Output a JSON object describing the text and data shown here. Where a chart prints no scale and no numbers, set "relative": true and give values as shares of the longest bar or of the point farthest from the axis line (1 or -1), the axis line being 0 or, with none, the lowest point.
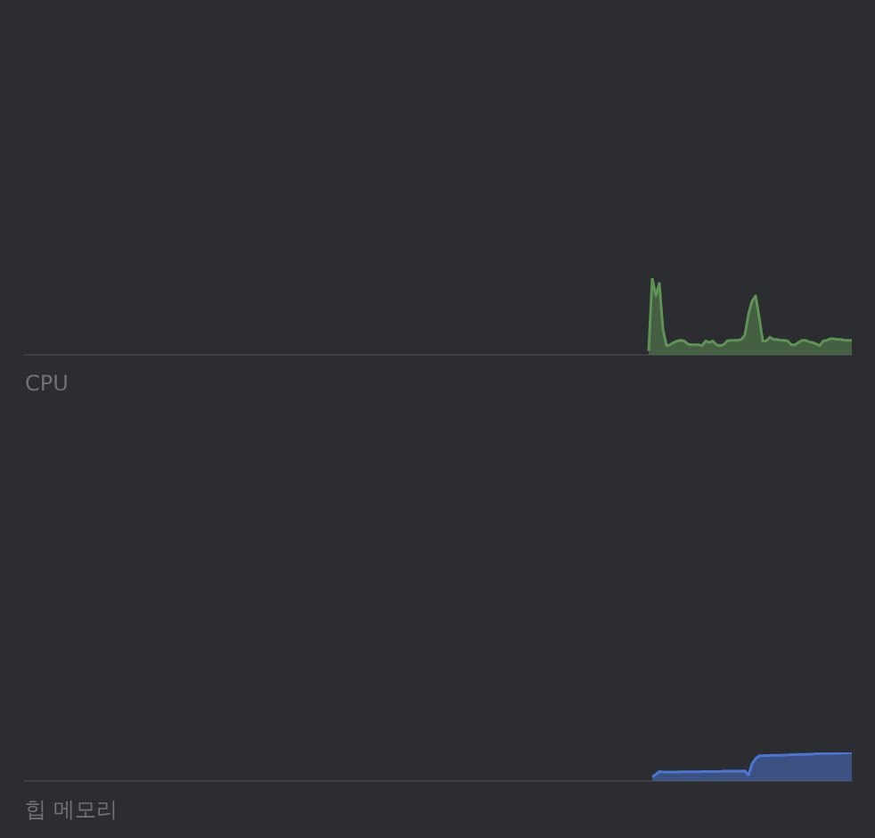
{
  "chart_data": [
    {
      "type": "area",
      "title": "CPU",
      "relative": true,
      "color": "#5f9255",
      "categories": [
        null,
        null,
        null,
        null,
        null,
        null,
        null,
        null,
        null,
        null,
        null,
        null,
        null,
        null,
        null,
        null,
        null,
        null,
        null,
        null,
        null,
        null,
        null,
        null,
        null,
        null,
        null,
        null,
        null,
        null,
        null,
        null,
        null,
        null,
        null,
        null,
        null,
        null,
        null,
        null,
        null,
        null,
        null,
        null,
        null,
        null,
        null,
        null,
        null,
        null,
        null,
        null,
        null,
        null,
        null,
        null,
        null,
        null,
        null,
        null,
        null,
        null,
        null,
        null,
        null,
        null,
        null,
        null,
        null,
        null,
        null,
        null,
        null,
        null,
        null,
        null,
        null,
        null,
        null,
        null,
        null,
        null,
        null,
        null,
        null,
        null,
        null,
        null,
        null,
        null,
        null,
        null,
        null,
        null,
        null,
        null,
        null,
        null,
        null,
        null,
        null,
        null,
        null,
        null,
        null,
        null,
        null,
        null,
        null,
        null,
        null,
        null,
        null,
        null,
        null,
        null,
        null,
        null,
        null,
        null,
        null,
        null,
        null,
        null,
        null,
        null,
        null,
        null,
        null,
        null,
        null,
        null,
        null,
        null,
        null,
        null,
        null,
        null,
        null,
        null,
        null,
        null,
        null,
        null,
        null,
        null,
        null,
        null,
        null,
        null,
        null,
        null,
        null,
        null,
        null,
        null,
        null,
        null,
        null,
        null,
        null,
        null,
        null,
        null,
        null,
        null,
        null,
        null,
        null,
        null,
        null,
        null,
        null,
        null,
        null,
        null,
        null,
        null,
        null,
        null,
        null,
        null,
        null,
        null,
        null,
        null,
        null,
        null,
        null,
        null,
        null,
        null,
        null,
        null,
        null,
        null,
        null,
        null,
        null,
        null,
        null,
        null,
        null,
        null,
        null,
        null,
        null,
        null,
        null,
        null,
        null,
        null,
        null,
        null,
        null,
        null,
        null,
        null,
        null,
        null,
        null,
        null,
        null,
        null,
        null,
        null,
        null,
        null,
        null,
        null,
        null,
        null,
        null
      ],
      "values": [
        null,
        null,
        null,
        null,
        null,
        null,
        null,
        null,
        null,
        null,
        null,
        null,
        null,
        null,
        null,
        null,
        null,
        null,
        null,
        null,
        null,
        null,
        null,
        null,
        null,
        null,
        null,
        null,
        null,
        null,
        null,
        null,
        null,
        null,
        null,
        null,
        null,
        null,
        null,
        null,
        null,
        null,
        null,
        null,
        null,
        null,
        null,
        null,
        null,
        null,
        null,
        null,
        null,
        null,
        null,
        null,
        null,
        null,
        null,
        null,
        null,
        null,
        null,
        null,
        null,
        null,
        null,
        null,
        null,
        null,
        null,
        null,
        null,
        null,
        null,
        null,
        null,
        null,
        null,
        null,
        null,
        null,
        null,
        null,
        null,
        null,
        null,
        null,
        null,
        null,
        null,
        null,
        null,
        null,
        null,
        null,
        null,
        null,
        null,
        null,
        null,
        null,
        null,
        null,
        null,
        null,
        null,
        null,
        null,
        null,
        null,
        null,
        null,
        null,
        null,
        null,
        null,
        null,
        null,
        null,
        null,
        null,
        null,
        null,
        null,
        null,
        null,
        null,
        null,
        null,
        null,
        null,
        null,
        null,
        null,
        null,
        null,
        null,
        null,
        null,
        null,
        null,
        null,
        null,
        null,
        null,
        null,
        null,
        null,
        null,
        null,
        null,
        null,
        null,
        null,
        null,
        null,
        null,
        null,
        null,
        null,
        null,
        null,
        null,
        null,
        null,
        null,
        null,
        null,
        null,
        null,
        null,
        null,
        null,
        null,
        0.05,
        1,
        0.77,
        0.93,
        0.33,
        0.12,
        0.13,
        0.16,
        0.18,
        0.19,
        0.18,
        0.14,
        0.13,
        0.13,
        0.13,
        0.12,
        0.18,
        0.16,
        0.18,
        0.13,
        0.12,
        0.13,
        0.18,
        0.19,
        0.19,
        0.19,
        0.2,
        0.26,
        0.53,
        0.7,
        0.77,
        0.49,
        0.18,
        0.18,
        0.23,
        0.2,
        0.2,
        0.19,
        0.19,
        0.18,
        0.13,
        0.13,
        0.16,
        0.19,
        0.19,
        0.17,
        0.16,
        0.14,
        0.12,
        0.18,
        0.19,
        0.21,
        0.21,
        0.2,
        0.2,
        0.19,
        0.19,
        0.19
      ]
    },
    {
      "type": "area",
      "title": "힙 메모리",
      "relative": true,
      "color": "#4a76d2",
      "categories": [
        null,
        null,
        null,
        null,
        null,
        null,
        null,
        null,
        null,
        null,
        null,
        null,
        null,
        null,
        null,
        null,
        null,
        null,
        null,
        null,
        null,
        null,
        null,
        null,
        null,
        null,
        null,
        null,
        null,
        null,
        null,
        null,
        null,
        null,
        null,
        null,
        null,
        null,
        null,
        null,
        null,
        null,
        null,
        null,
        null,
        null,
        null,
        null,
        null,
        null,
        null,
        null,
        null,
        null,
        null,
        null,
        null,
        null,
        null,
        null,
        null,
        null,
        null,
        null,
        null,
        null,
        null,
        null,
        null,
        null,
        null,
        null,
        null,
        null,
        null,
        null,
        null,
        null,
        null,
        null,
        null,
        null,
        null,
        null,
        null,
        null,
        null,
        null,
        null,
        null,
        null,
        null,
        null,
        null,
        null,
        null,
        null,
        null,
        null,
        null,
        null,
        null,
        null,
        null,
        null,
        null,
        null,
        null,
        null,
        null,
        null,
        null,
        null,
        null,
        null,
        null,
        null,
        null,
        null,
        null,
        null,
        null,
        null,
        null,
        null,
        null,
        null,
        null,
        null,
        null,
        null,
        null,
        null,
        null,
        null,
        null,
        null,
        null,
        null,
        null,
        null,
        null,
        null,
        null,
        null,
        null,
        null,
        null,
        null,
        null,
        null,
        null,
        null,
        null,
        null,
        null,
        null,
        null,
        null,
        null,
        null,
        null,
        null,
        null,
        null,
        null,
        null,
        null,
        null,
        null,
        null,
        null,
        null,
        null,
        null,
        null,
        null,
        null,
        null,
        null,
        null,
        null,
        null,
        null,
        null,
        null,
        null,
        null,
        null,
        null,
        null,
        null,
        null,
        null,
        null,
        null,
        null,
        null,
        null,
        null,
        null,
        null,
        null,
        null,
        null,
        null,
        null,
        null,
        null,
        null,
        null,
        null,
        null,
        null,
        null,
        null,
        null,
        null,
        null,
        null,
        null,
        null,
        null,
        null,
        null,
        null,
        null,
        null,
        null,
        null,
        null,
        null,
        null
      ],
      "values": [
        null,
        null,
        null,
        null,
        null,
        null,
        null,
        null,
        null,
        null,
        null,
        null,
        null,
        null,
        null,
        null,
        null,
        null,
        null,
        null,
        null,
        null,
        null,
        null,
        null,
        null,
        null,
        null,
        null,
        null,
        null,
        null,
        null,
        null,
        null,
        null,
        null,
        null,
        null,
        null,
        null,
        null,
        null,
        null,
        null,
        null,
        null,
        null,
        null,
        null,
        null,
        null,
        null,
        null,
        null,
        null,
        null,
        null,
        null,
        null,
        null,
        null,
        null,
        null,
        null,
        null,
        null,
        null,
        null,
        null,
        null,
        null,
        null,
        null,
        null,
        null,
        null,
        null,
        null,
        null,
        null,
        null,
        null,
        null,
        null,
        null,
        null,
        null,
        null,
        null,
        null,
        null,
        null,
        null,
        null,
        null,
        null,
        null,
        null,
        null,
        null,
        null,
        null,
        null,
        null,
        null,
        null,
        null,
        null,
        null,
        null,
        null,
        null,
        null,
        null,
        null,
        null,
        null,
        null,
        null,
        null,
        null,
        null,
        null,
        null,
        null,
        null,
        null,
        null,
        null,
        null,
        null,
        null,
        null,
        null,
        null,
        null,
        null,
        null,
        null,
        null,
        null,
        null,
        null,
        null,
        null,
        null,
        null,
        null,
        null,
        null,
        null,
        null,
        null,
        null,
        null,
        null,
        null,
        null,
        null,
        null,
        null,
        null,
        null,
        null,
        null,
        null,
        null,
        null,
        null,
        null,
        null,
        null,
        null,
        null,
        null,
        0.14,
        0.23,
        0.33,
        0.31,
        0.31,
        0.31,
        0.31,
        0.31,
        0.32,
        0.32,
        0.32,
        0.32,
        0.32,
        0.32,
        0.33,
        0.33,
        0.33,
        0.33,
        0.33,
        0.33,
        0.34,
        0.34,
        0.34,
        0.34,
        0.34,
        0.34,
        0.35,
        0.2,
        0.6,
        0.78,
        0.88,
        0.88,
        0.89,
        0.89,
        0.9,
        0.9,
        0.9,
        0.91,
        0.91,
        0.92,
        0.92,
        0.93,
        0.93,
        0.93,
        0.94,
        0.94,
        0.95,
        0.95,
        0.96,
        0.96,
        0.96,
        0.97,
        0.97,
        0.98,
        0.98,
        0.99,
        1
      ]
    }
  ]
}
